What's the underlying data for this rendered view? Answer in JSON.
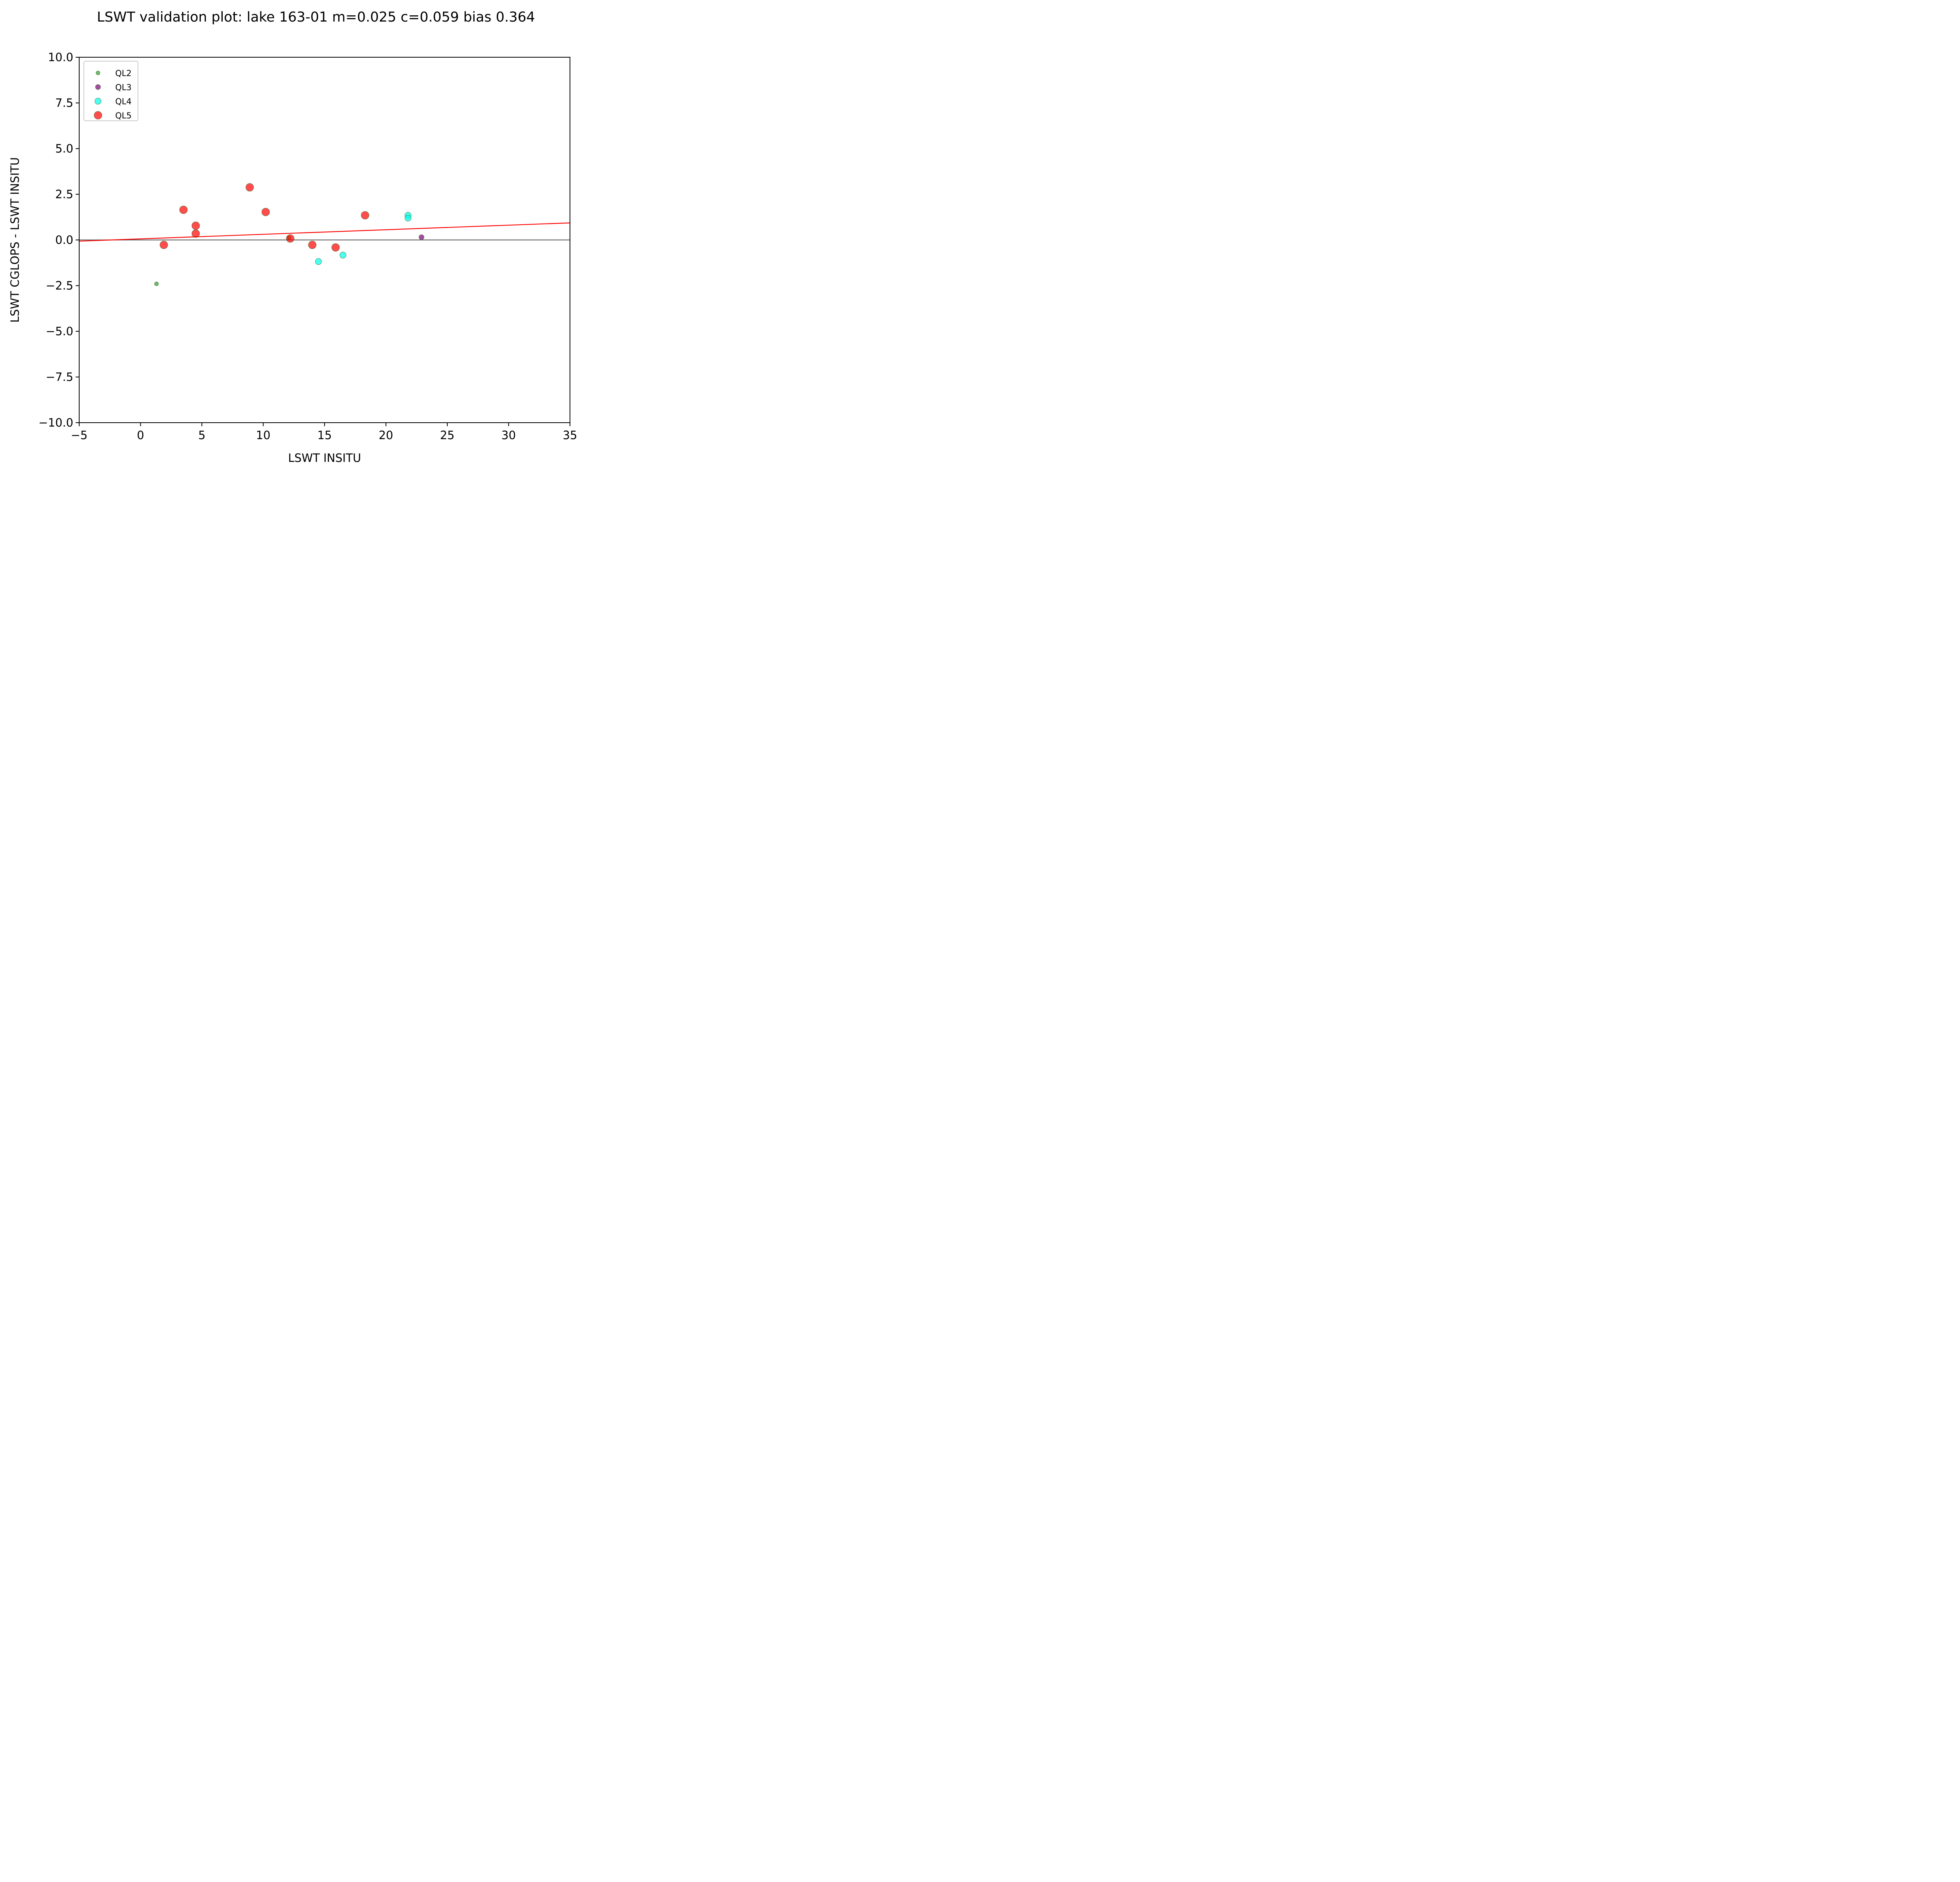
{
  "chart_data": {
    "type": "scatter",
    "title": "LSWT validation plot: lake 163-01 m=0.025 c=0.059 bias 0.364",
    "xlabel": "LSWT INSITU",
    "ylabel": "LSWT CGLOPS - LSWT INSITU",
    "xlim": [
      -5,
      35
    ],
    "ylim": [
      -10,
      10
    ],
    "x_ticks": [
      -5,
      0,
      5,
      10,
      15,
      20,
      25,
      30,
      35
    ],
    "x_tick_labels": [
      "−5",
      "0",
      "5",
      "10",
      "15",
      "20",
      "25",
      "30",
      "35"
    ],
    "y_ticks": [
      10,
      7.5,
      5,
      2.5,
      0,
      -2.5,
      -5,
      -7.5,
      -10
    ],
    "y_tick_labels": [
      "10.0",
      "7.5",
      "5.0",
      "2.5",
      "0.0",
      "−2.5",
      "−5.0",
      "−7.5",
      "−10.0"
    ],
    "grid": false,
    "legend_position": "top-left",
    "series": [
      {
        "name": "QL2",
        "color": "#2ca02c",
        "points": [
          [
            1.3,
            -2.4
          ],
          [
            12.1,
            0.12
          ]
        ]
      },
      {
        "name": "QL3",
        "color": "#800080",
        "points": [
          [
            22.9,
            0.15
          ]
        ]
      },
      {
        "name": "QL4",
        "color": "#00ffee",
        "points": [
          [
            14.5,
            -1.18
          ],
          [
            16.5,
            -0.83
          ],
          [
            21.8,
            1.35
          ],
          [
            21.8,
            1.2
          ]
        ]
      },
      {
        "name": "QL5",
        "color": "#ff0000",
        "points": [
          [
            1.9,
            -0.27
          ],
          [
            3.5,
            1.65
          ],
          [
            4.5,
            0.78
          ],
          [
            4.5,
            0.35
          ],
          [
            8.9,
            2.88
          ],
          [
            10.2,
            1.53
          ],
          [
            12.2,
            0.08
          ],
          [
            14.0,
            -0.27
          ],
          [
            15.9,
            -0.41
          ],
          [
            18.3,
            1.35
          ]
        ]
      }
    ],
    "fit_line": {
      "slope": 0.025,
      "intercept": 0.059,
      "color": "#ff0000"
    },
    "reference_line": {
      "y": 0,
      "color": "#666666"
    }
  }
}
